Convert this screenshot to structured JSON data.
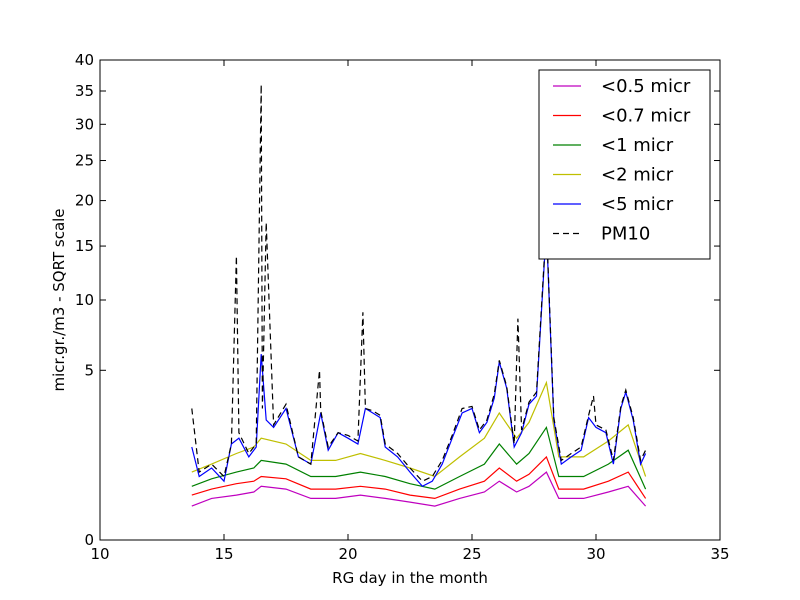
{
  "chart_data": {
    "type": "line",
    "title": "",
    "xlabel": "RG day in the month",
    "ylabel": "micr.gr./m3 - SQRT scale",
    "xlim": [
      10,
      35
    ],
    "ylim": [
      0,
      40
    ],
    "y_scale": "sqrt",
    "x_ticks": [
      10,
      15,
      20,
      25,
      30,
      35
    ],
    "y_ticks": [
      0,
      5,
      10,
      15,
      20,
      25,
      30,
      35,
      40
    ],
    "grid": false,
    "legend_position": "top-right",
    "series": [
      {
        "name": "<0.5 micr",
        "color": "#bf00bf",
        "style": "solid",
        "x": [
          13.7,
          14.5,
          15.5,
          16.2,
          16.5,
          17.5,
          18.5,
          19.5,
          20.5,
          21.5,
          22.5,
          23.5,
          24.5,
          25.5,
          26.1,
          26.8,
          27.3,
          28.0,
          28.5,
          29.5,
          30.5,
          31.3,
          32.0
        ],
        "y": [
          0.2,
          0.3,
          0.35,
          0.4,
          0.5,
          0.45,
          0.3,
          0.3,
          0.35,
          0.3,
          0.25,
          0.2,
          0.3,
          0.4,
          0.6,
          0.4,
          0.5,
          0.8,
          0.3,
          0.3,
          0.4,
          0.5,
          0.2
        ]
      },
      {
        "name": "<0.7 micr",
        "color": "#ff0000",
        "style": "solid",
        "x": [
          13.7,
          14.5,
          15.5,
          16.2,
          16.5,
          17.5,
          18.5,
          19.5,
          20.5,
          21.5,
          22.5,
          23.5,
          24.5,
          25.5,
          26.1,
          26.8,
          27.3,
          28.0,
          28.5,
          29.5,
          30.5,
          31.3,
          32.0
        ],
        "y": [
          0.35,
          0.45,
          0.55,
          0.6,
          0.7,
          0.65,
          0.45,
          0.45,
          0.5,
          0.45,
          0.35,
          0.3,
          0.45,
          0.6,
          0.9,
          0.6,
          0.75,
          1.2,
          0.45,
          0.45,
          0.6,
          0.8,
          0.3
        ]
      },
      {
        "name": "<1 micr",
        "color": "#008000",
        "style": "solid",
        "x": [
          13.7,
          14.5,
          15.5,
          16.2,
          16.5,
          17.5,
          18.5,
          19.5,
          20.5,
          21.5,
          22.5,
          23.5,
          24.5,
          25.5,
          26.1,
          26.8,
          27.3,
          28.0,
          28.5,
          29.5,
          30.5,
          31.3,
          32.0
        ],
        "y": [
          0.5,
          0.65,
          0.8,
          0.9,
          1.1,
          1.0,
          0.7,
          0.7,
          0.8,
          0.7,
          0.55,
          0.45,
          0.7,
          1.0,
          1.6,
          1.0,
          1.3,
          2.2,
          0.7,
          0.7,
          1.0,
          1.4,
          0.45
        ]
      },
      {
        "name": "<2 micr",
        "color": "#bfbf00",
        "style": "solid",
        "x": [
          13.7,
          14.5,
          15.5,
          16.2,
          16.5,
          17.5,
          18.5,
          19.5,
          20.5,
          21.5,
          22.5,
          23.5,
          24.5,
          25.5,
          26.1,
          26.8,
          27.3,
          28.0,
          28.5,
          29.5,
          30.5,
          31.3,
          32.0
        ],
        "y": [
          0.8,
          1.0,
          1.3,
          1.5,
          1.8,
          1.6,
          1.1,
          1.1,
          1.3,
          1.1,
          0.9,
          0.7,
          1.2,
          1.8,
          2.8,
          1.8,
          2.4,
          4.3,
          1.2,
          1.2,
          1.7,
          2.3,
          0.7
        ]
      },
      {
        "name": "<5 micr",
        "color": "#0000ff",
        "style": "solid",
        "x": [
          13.7,
          14.0,
          14.5,
          15.0,
          15.3,
          15.6,
          16.0,
          16.3,
          16.5,
          16.7,
          17.0,
          17.5,
          18.0,
          18.5,
          18.9,
          19.2,
          19.6,
          20.0,
          20.4,
          20.7,
          21.0,
          21.3,
          21.5,
          22.0,
          22.5,
          23.0,
          23.4,
          23.8,
          24.2,
          24.6,
          25.0,
          25.3,
          25.6,
          25.9,
          26.1,
          26.4,
          26.7,
          27.0,
          27.3,
          27.6,
          28.0,
          28.3,
          28.6,
          29.0,
          29.4,
          29.7,
          30.0,
          30.4,
          30.7,
          31.0,
          31.2,
          31.5,
          31.8,
          32.0
        ],
        "y": [
          1.5,
          0.7,
          0.9,
          0.6,
          1.6,
          1.8,
          1.2,
          1.5,
          6.0,
          2.5,
          2.2,
          3.0,
          1.2,
          1.0,
          2.8,
          1.4,
          2.0,
          1.8,
          1.6,
          3.0,
          2.8,
          2.6,
          1.5,
          1.2,
          0.8,
          0.5,
          0.6,
          1.0,
          1.8,
          2.8,
          3.0,
          2.0,
          2.4,
          3.5,
          5.5,
          4.0,
          1.5,
          2.0,
          3.2,
          3.6,
          17.0,
          2.5,
          1.0,
          1.2,
          1.4,
          2.6,
          2.2,
          2.0,
          1.0,
          3.0,
          3.8,
          2.5,
          1.0,
          1.3
        ]
      },
      {
        "name": "PM10",
        "color": "#000000",
        "style": "dashed",
        "x": [
          13.7,
          14.0,
          14.5,
          15.0,
          15.3,
          15.5,
          15.6,
          16.0,
          16.3,
          16.5,
          16.55,
          16.7,
          17.0,
          17.5,
          18.0,
          18.5,
          18.85,
          18.9,
          19.2,
          19.6,
          20.0,
          20.4,
          20.6,
          20.7,
          21.0,
          21.3,
          21.5,
          22.0,
          22.5,
          23.0,
          23.4,
          23.8,
          24.2,
          24.6,
          25.0,
          25.3,
          25.6,
          25.9,
          26.1,
          26.4,
          26.7,
          26.85,
          27.0,
          27.3,
          27.6,
          28.0,
          28.3,
          28.6,
          29.0,
          29.4,
          29.7,
          29.9,
          30.0,
          30.4,
          30.7,
          31.0,
          31.2,
          31.5,
          31.8,
          32.0
        ],
        "y": [
          3.0,
          0.8,
          1.0,
          0.7,
          1.6,
          14.0,
          2.0,
          1.3,
          1.6,
          36.0,
          3.0,
          17.5,
          2.3,
          3.2,
          1.2,
          1.0,
          5.0,
          2.9,
          1.5,
          2.0,
          1.9,
          1.7,
          9.0,
          3.0,
          2.9,
          2.7,
          1.6,
          1.3,
          0.9,
          0.6,
          0.7,
          1.1,
          1.9,
          3.0,
          3.1,
          2.1,
          2.5,
          3.7,
          5.6,
          4.1,
          1.6,
          8.5,
          2.1,
          3.3,
          3.8,
          17.5,
          2.6,
          1.1,
          1.3,
          1.5,
          2.7,
          3.6,
          2.3,
          2.1,
          1.1,
          3.1,
          3.9,
          2.6,
          1.1,
          1.4
        ]
      }
    ]
  }
}
